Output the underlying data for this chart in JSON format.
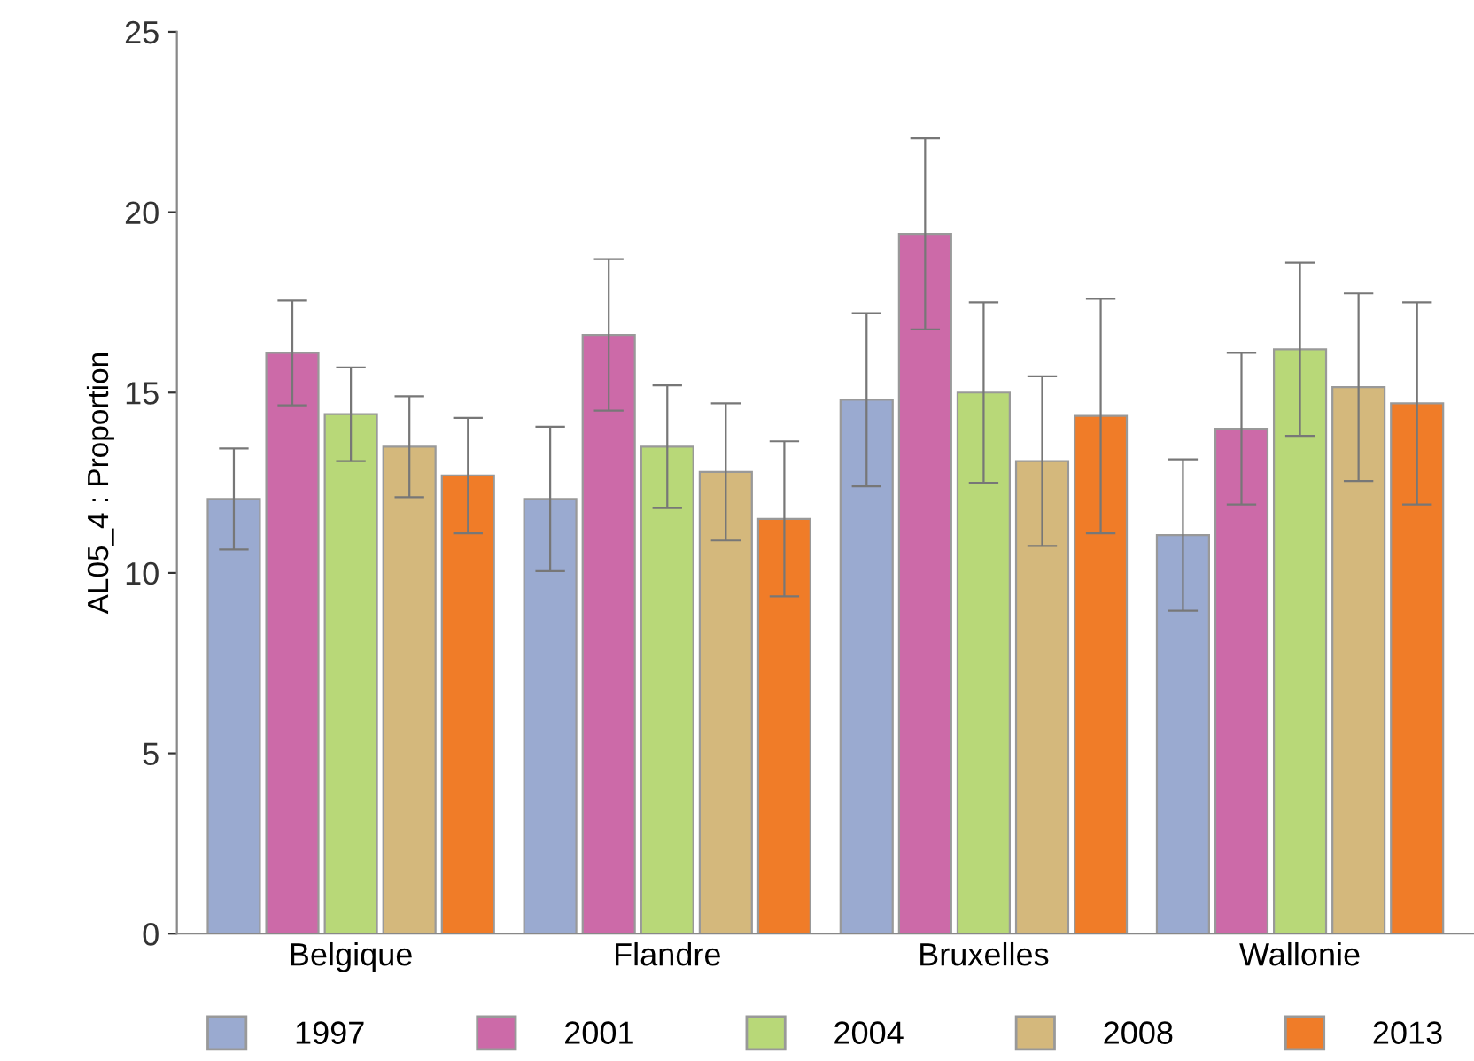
{
  "chart_data": {
    "type": "bar",
    "ylabel": "AL05_4 : Proportion",
    "categories": [
      "Belgique",
      "Flandre",
      "Bruxelles",
      "Wallonie"
    ],
    "ylim": [
      0,
      25
    ],
    "yticks": [
      0,
      5,
      10,
      15,
      20,
      25
    ],
    "grid": false,
    "legend": "bottom",
    "series": [
      {
        "name": "1997",
        "color": "#9aaad0",
        "values": [
          12.05,
          12.05,
          14.8,
          11.05
        ],
        "errors": [
          1.4,
          2.0,
          2.4,
          2.1
        ]
      },
      {
        "name": "2001",
        "color": "#cc6aa8",
        "values": [
          16.1,
          16.6,
          19.4,
          14.0
        ],
        "errors": [
          1.45,
          2.1,
          2.65,
          2.1
        ]
      },
      {
        "name": "2004",
        "color": "#b8d878",
        "values": [
          14.4,
          13.5,
          15.0,
          16.2
        ],
        "errors": [
          1.3,
          1.7,
          2.5,
          2.4
        ]
      },
      {
        "name": "2008",
        "color": "#d4b87c",
        "values": [
          13.5,
          12.8,
          13.1,
          15.15
        ],
        "errors": [
          1.4,
          1.9,
          2.35,
          2.6
        ]
      },
      {
        "name": "2013",
        "color": "#f07c28",
        "values": [
          12.7,
          11.5,
          14.35,
          14.7
        ],
        "errors": [
          1.6,
          2.15,
          3.25,
          2.8
        ]
      }
    ]
  }
}
